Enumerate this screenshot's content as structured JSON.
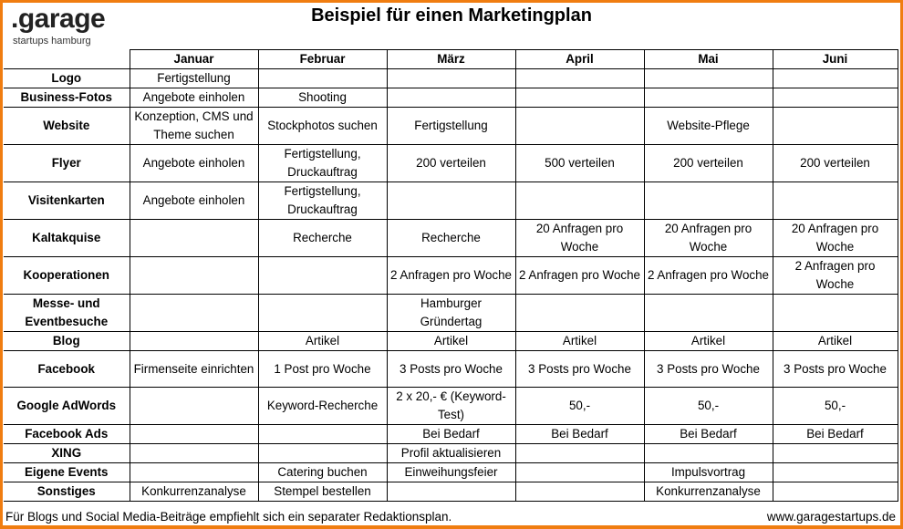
{
  "logo": {
    "brand": ".garage",
    "subtitle": "startups hamburg"
  },
  "title": "Beispiel für einen Marketingplan",
  "columns": [
    "Januar",
    "Februar",
    "März",
    "April",
    "Mai",
    "Juni"
  ],
  "rows": [
    {
      "label": "Logo",
      "cells": [
        "Fertigstellung",
        "",
        "",
        "",
        "",
        ""
      ]
    },
    {
      "label": "Business-Fotos",
      "cells": [
        "Angebote einholen",
        "Shooting",
        "",
        "",
        "",
        ""
      ]
    },
    {
      "label": "Website",
      "cells": [
        "Konzeption, CMS und Theme suchen",
        "Stockphotos suchen",
        "Fertigstellung",
        "",
        "Website-Pflege",
        ""
      ]
    },
    {
      "label": "Flyer",
      "cells": [
        "Angebote einholen",
        "Fertigstellung, Druckauftrag",
        "200 verteilen",
        "500 verteilen",
        "200 verteilen",
        "200 verteilen"
      ]
    },
    {
      "label": "Visitenkarten",
      "cells": [
        "Angebote einholen",
        "Fertigstellung, Druckauftrag",
        "",
        "",
        "",
        ""
      ]
    },
    {
      "label": "Kaltakquise",
      "cells": [
        "",
        "Recherche",
        "Recherche",
        "20 Anfragen pro Woche",
        "20 Anfragen pro Woche",
        "20 Anfragen pro Woche"
      ]
    },
    {
      "label": "Kooperationen",
      "cells": [
        "",
        "",
        "2 Anfragen pro Woche",
        "2 Anfragen pro Woche",
        "2 Anfragen pro Woche",
        "2 Anfragen pro Woche"
      ]
    },
    {
      "label": "Messe- und Eventbesuche",
      "cells": [
        "",
        "",
        "Hamburger Gründertag",
        "",
        "",
        ""
      ]
    },
    {
      "label": "Blog",
      "cells": [
        "",
        "Artikel",
        "Artikel",
        "Artikel",
        "Artikel",
        "Artikel"
      ]
    },
    {
      "label": "Facebook",
      "cells": [
        "Firmenseite einrichten",
        "1 Post pro Woche",
        "3 Posts pro Woche",
        "3 Posts pro Woche",
        "3 Posts pro Woche",
        "3 Posts pro Woche"
      ]
    },
    {
      "label": "Google AdWords",
      "cells": [
        "",
        "Keyword-Recherche",
        "2 x 20,- € (Keyword-Test)",
        "50,-",
        "50,-",
        "50,-"
      ]
    },
    {
      "label": "Facebook Ads",
      "cells": [
        "",
        "",
        "Bei Bedarf",
        "Bei Bedarf",
        "Bei Bedarf",
        "Bei Bedarf"
      ]
    },
    {
      "label": "XING",
      "cells": [
        "",
        "",
        "Profil aktualisieren",
        "",
        "",
        ""
      ]
    },
    {
      "label": "Eigene Events",
      "cells": [
        "",
        "Catering buchen",
        "Einweihungsfeier",
        "",
        "Impulsvortrag",
        ""
      ]
    },
    {
      "label": "Sonstiges",
      "cells": [
        "Konkurrenzanalyse",
        "Stempel bestellen",
        "",
        "",
        "Konkurrenzanalyse",
        ""
      ]
    }
  ],
  "footer": {
    "note": "Für Blogs und Social Media-Beiträge empfiehlt sich ein separater Redaktionsplan.",
    "url": "www.garagestartups.de"
  },
  "colors": {
    "frame": "#f07d10",
    "text": "#000000"
  }
}
